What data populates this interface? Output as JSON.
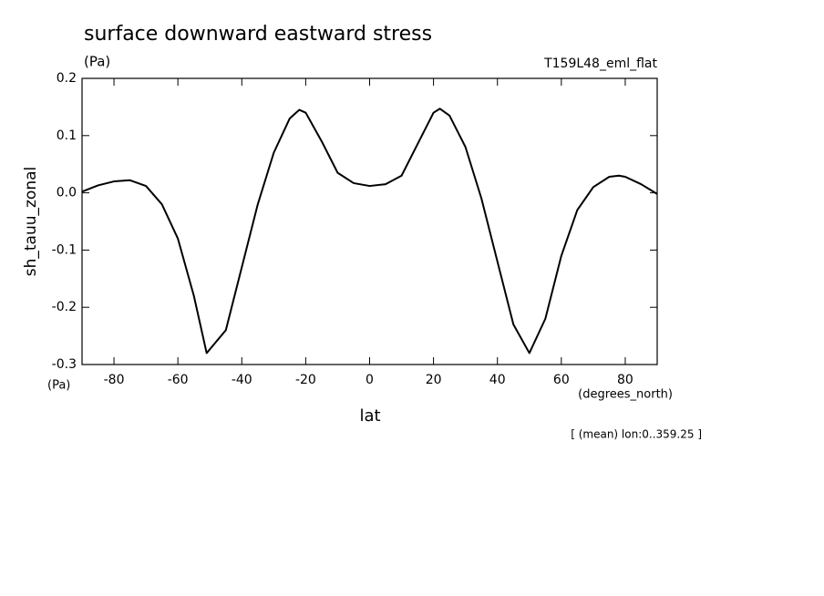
{
  "chart_data": {
    "type": "line",
    "title": "surface downward eastward stress",
    "subtitle": "(Pa)",
    "label_right": "T159L48_eml_flat",
    "y_label": "sh_tauu_zonal",
    "y_unit": "(Pa)",
    "x_label": "lat",
    "x_unit": "(degrees_north)",
    "annotation": "[ (mean) lon:0..359.25 ]",
    "x": [
      -90,
      -85,
      -80,
      -75,
      -70,
      -65,
      -60,
      -55,
      -51,
      -45,
      -40,
      -35,
      -30,
      -25,
      -22,
      -20,
      -15,
      -10,
      -5,
      0,
      5,
      10,
      15,
      20,
      22,
      25,
      30,
      35,
      40,
      45,
      50,
      55,
      60,
      65,
      70,
      75,
      78,
      80,
      85,
      90
    ],
    "series": [
      {
        "name": "sh_tauu_zonal",
        "color": "#000000",
        "values": [
          0.002,
          0.013,
          0.02,
          0.022,
          0.012,
          -0.02,
          -0.08,
          -0.18,
          -0.28,
          -0.24,
          -0.13,
          -0.02,
          0.07,
          0.13,
          0.145,
          0.14,
          0.09,
          0.035,
          0.017,
          0.012,
          0.015,
          0.03,
          0.085,
          0.14,
          0.147,
          0.135,
          0.08,
          -0.01,
          -0.12,
          -0.23,
          -0.28,
          -0.22,
          -0.11,
          -0.03,
          0.01,
          0.028,
          0.03,
          0.028,
          0.015,
          -0.002
        ]
      }
    ],
    "xlim": [
      -90,
      90
    ],
    "ylim": [
      -0.3,
      0.2
    ],
    "xticks": [
      -80,
      -60,
      -40,
      -20,
      0,
      20,
      40,
      60,
      80
    ],
    "yticks": [
      0.2,
      0.1,
      {
        "value": 0,
        "label": "0.0"
      },
      -0.1,
      -0.2,
      -0.3
    ]
  }
}
